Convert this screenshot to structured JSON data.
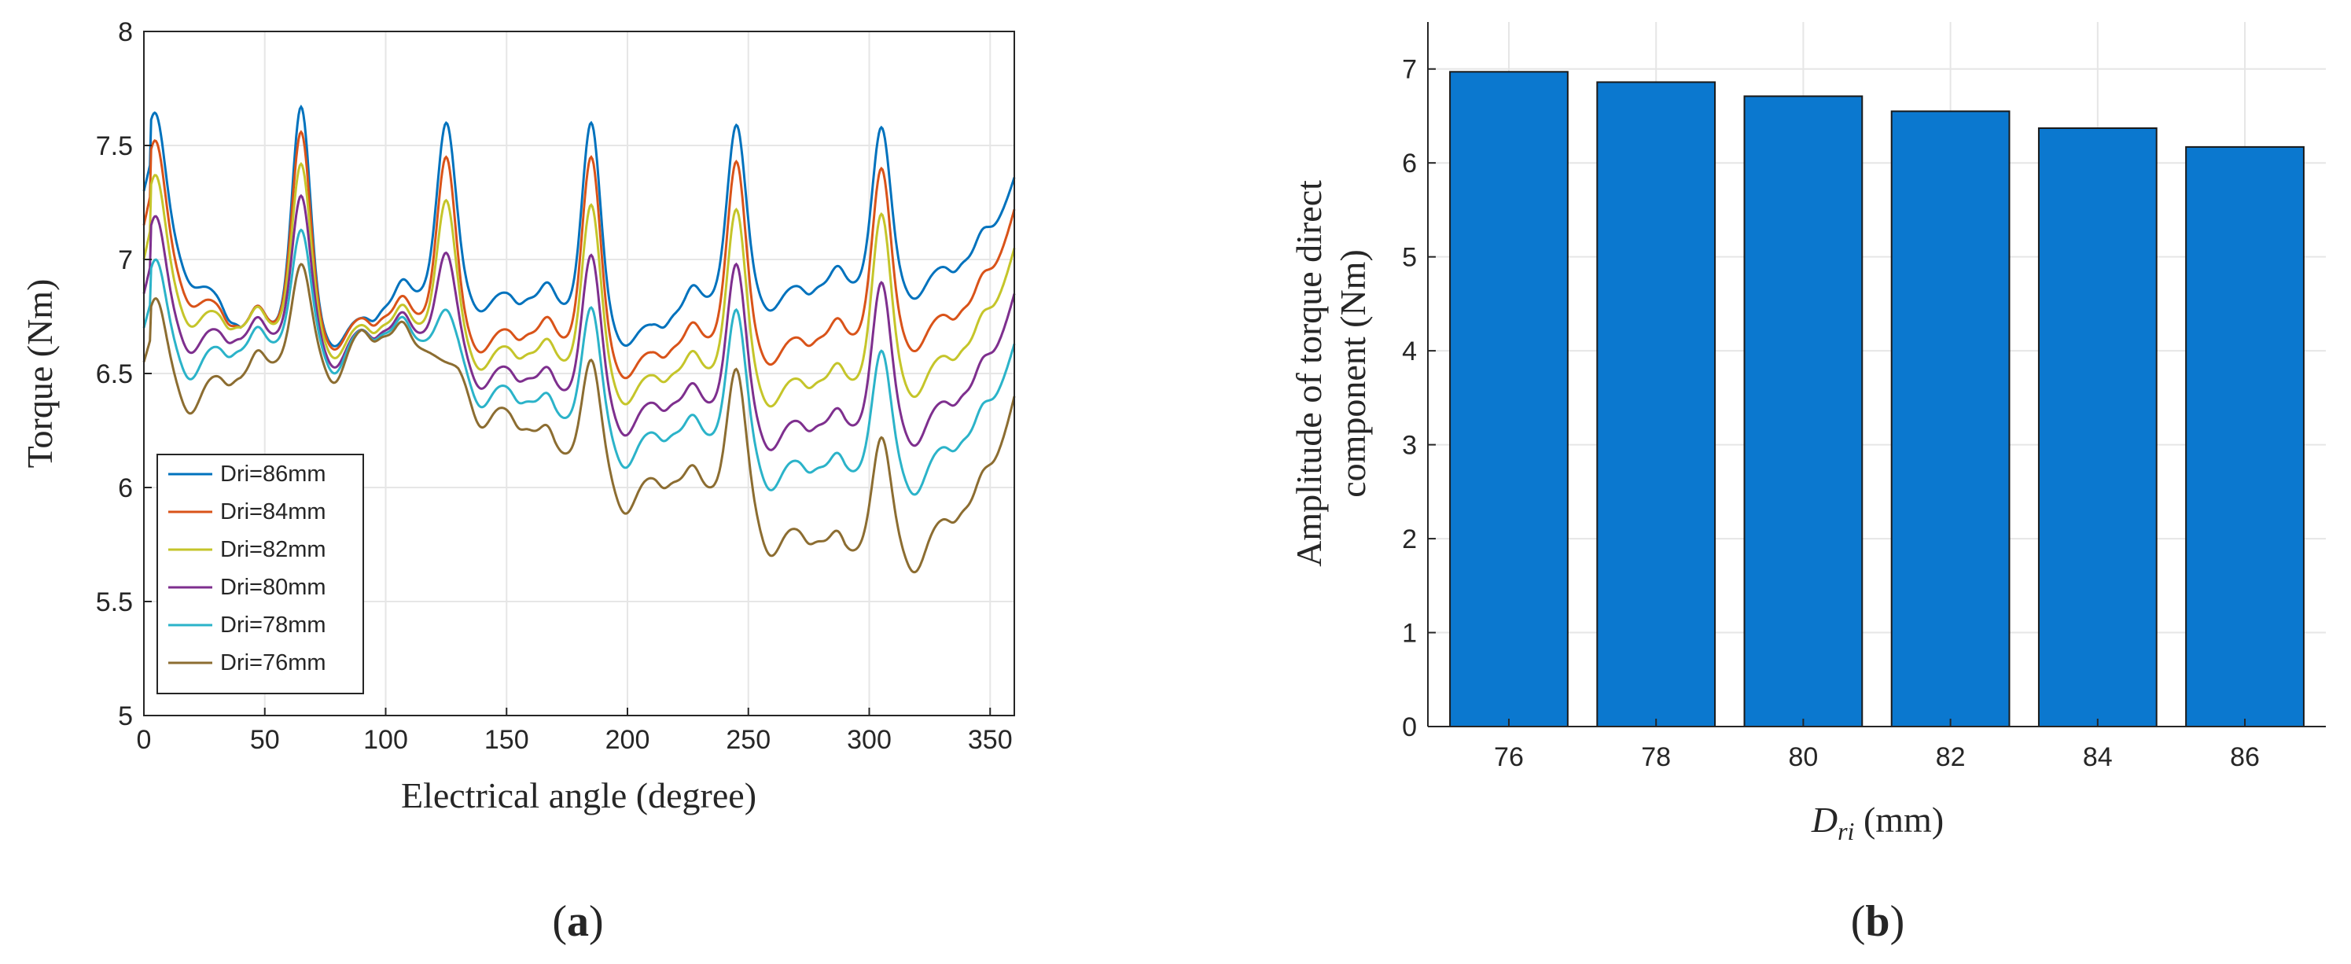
{
  "figure": {
    "panels": [
      {
        "label_open": "(",
        "label_letter": "a",
        "label_close": ")"
      },
      {
        "label_open": "(",
        "label_letter": "b",
        "label_close": ")"
      }
    ]
  },
  "colors": {
    "line_series": [
      "#0072bd",
      "#d95319",
      "#c5c52a",
      "#7e2f8e",
      "#2bb3c9",
      "#8c6d31"
    ],
    "bar": "#0b78cf",
    "grid": "#e6e6e6",
    "axis": "#262626"
  },
  "chart_data": [
    {
      "type": "line",
      "xlabel": "Electrical angle (degree)",
      "ylabel": "Torque (Nm)",
      "xlim": [
        0,
        360
      ],
      "ylim": [
        5,
        8
      ],
      "xticks": [
        0,
        50,
        100,
        150,
        200,
        250,
        300,
        350
      ],
      "yticks": [
        5,
        5.5,
        6,
        6.5,
        7,
        7.5,
        8
      ],
      "ytick_labels": [
        "5",
        "5.5",
        "6",
        "6.5",
        "7",
        "7.5",
        "8"
      ],
      "grid": true,
      "legend_position": "bottom-left",
      "peaks_x": [
        5,
        65,
        125,
        185,
        245,
        305
      ],
      "series": [
        {
          "name": "Dri=86mm",
          "base": [
            7.3,
            6.7,
            6.75,
            6.92,
            6.8,
            6.72,
            6.9,
            6.88,
            7.02
          ],
          "peak_top": 7.64,
          "peak_tops": [
            7.64,
            7.67,
            7.6,
            7.6,
            7.59,
            7.58
          ],
          "end": 7.36
        },
        {
          "name": "Dri=84mm",
          "base": [
            7.15,
            6.7,
            6.75,
            6.75,
            6.65,
            6.6,
            6.68,
            6.65,
            6.82
          ],
          "peak_top": 7.52,
          "peak_tops": [
            7.52,
            7.56,
            7.45,
            7.45,
            7.43,
            7.4
          ],
          "end": 7.22
        },
        {
          "name": "Dri=82mm",
          "base": [
            7.0,
            6.7,
            6.72,
            6.7,
            6.55,
            6.5,
            6.52,
            6.45,
            6.65
          ],
          "peak_top": 7.37,
          "peak_tops": [
            7.37,
            7.42,
            7.26,
            7.24,
            7.22,
            7.2
          ],
          "end": 7.05
        },
        {
          "name": "Dri=80mm",
          "base": [
            6.85,
            6.65,
            6.7,
            6.65,
            6.42,
            6.38,
            6.35,
            6.25,
            6.45
          ],
          "peak_top": 7.19,
          "peak_tops": [
            7.19,
            7.28,
            7.03,
            7.02,
            6.98,
            6.9
          ],
          "end": 6.85
        },
        {
          "name": "Dri=78mm",
          "base": [
            6.7,
            6.6,
            6.7,
            6.6,
            6.3,
            6.25,
            6.2,
            6.05,
            6.25
          ],
          "peak_top": 7.0,
          "peak_tops": [
            7.0,
            7.13,
            6.78,
            6.79,
            6.78,
            6.6
          ],
          "end": 6.63
        },
        {
          "name": "Dri=76mm",
          "base": [
            6.55,
            6.48,
            6.7,
            6.55,
            6.15,
            6.05,
            5.95,
            5.7,
            5.95
          ],
          "peak_top": 6.83,
          "peak_tops": [
            6.83,
            6.98,
            6.55,
            6.56,
            6.52,
            6.22
          ],
          "end": 6.4
        }
      ]
    },
    {
      "type": "bar",
      "xlabel_main": "D",
      "xlabel_sub": "ri",
      "xlabel_rest": " (mm)",
      "ylabel_line1": "Amplitude of torque direct",
      "ylabel_line2": "component (Nm)",
      "categories": [
        "76",
        "78",
        "80",
        "82",
        "84",
        "86"
      ],
      "values": [
        6.97,
        6.86,
        6.71,
        6.55,
        6.37,
        6.17
      ],
      "ylim": [
        0,
        7.5
      ],
      "yticks": [
        0,
        1,
        2,
        3,
        4,
        5,
        6,
        7
      ],
      "grid": true
    }
  ]
}
